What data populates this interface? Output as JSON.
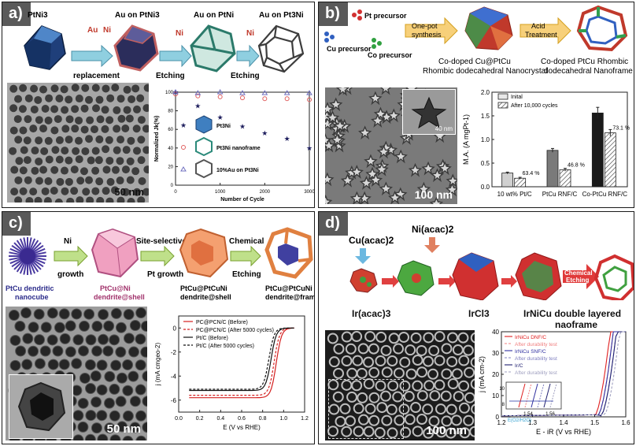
{
  "figure": {
    "panels": [
      {
        "label": "a)",
        "schematic": {
          "start": "PtNi3",
          "step_labels": [
            "Au on PtNi3",
            "Au on PtNi",
            "Au on Pt3Ni"
          ],
          "reagents": [
            "Au",
            "Ni",
            "Ni",
            "Ni"
          ],
          "arrow_labels": [
            "replacement",
            "Etching",
            "Etching"
          ]
        },
        "scale_bar": "50 nm",
        "chart_data": {
          "type": "scatter",
          "xlabel": "Number of Cycle",
          "ylabel": "Normalized Jk(%)",
          "xlim": [
            0,
            3000
          ],
          "ylim": [
            0,
            100
          ],
          "xticks": [
            "0",
            "1000",
            "2000",
            "3000"
          ],
          "yticks": [
            "0",
            "20",
            "40",
            "60",
            "80",
            "100"
          ],
          "legend_position": "left",
          "series": [
            {
              "name": "Pt3Ni",
              "marker": "star",
              "color": "#1f1f5e",
              "x": [
                0,
                500,
                1000,
                1500,
                2000,
                2500,
                3000
              ],
              "y": [
                100,
                85,
                73,
                63,
                56,
                50,
                40
              ]
            },
            {
              "name": "Pt3Ni nanoframe",
              "marker": "circle",
              "color": "#e06060",
              "x": [
                0,
                500,
                1000,
                1500,
                2000,
                2500,
                3000
              ],
              "y": [
                98,
                96,
                95,
                94,
                93,
                93,
                92
              ]
            },
            {
              "name": "10%Au on Pt3Ni",
              "marker": "triangle",
              "color": "#7070c0",
              "x": [
                0,
                500,
                1000,
                1500,
                2000,
                2500,
                3000
              ],
              "y": [
                100,
                99,
                100,
                99,
                99,
                99,
                99
              ]
            }
          ]
        }
      },
      {
        "label": "b)",
        "schematic": {
          "precursors": [
            "Pt precursor",
            "Cu precursor",
            "Co precursor"
          ],
          "arrow1": [
            "One-pot",
            "synthesis"
          ],
          "arrow2": [
            "Acid",
            "Treatment"
          ],
          "product1": [
            "Co-doped Cu@PtCu",
            "Rhombic dodecahedral Nanocrystal"
          ],
          "product2": [
            "Co-doped PtCu Rhombic",
            "dodecahedral Nanoframe"
          ]
        },
        "inset_scale": "40 nm",
        "scale_bar": "100 nm",
        "chart_data": {
          "type": "bar",
          "categories": [
            "10 wt% Pt/C",
            "PtCu RNF/C",
            "Co-PtCu RNF/C"
          ],
          "series": [
            {
              "name": "Inital",
              "values": [
                0.29,
                0.77,
                1.56
              ],
              "errors": [
                0.02,
                0.04,
                0.12
              ]
            },
            {
              "name": "After 10,000 cycles",
              "values": [
                0.18,
                0.36,
                1.14
              ],
              "errors": [
                0.02,
                0.03,
                0.07
              ]
            }
          ],
          "annotations": [
            "63.4 %",
            "46.8 %",
            "73.1 %"
          ],
          "ylabel": "M.A. (A mgPt-1)",
          "ylim": [
            0,
            2.0
          ],
          "yticks": [
            "0.0",
            "0.5",
            "1.0",
            "1.5",
            "2.0"
          ],
          "legend_position": "top-left"
        }
      },
      {
        "label": "c)",
        "schematic": {
          "items": [
            [
              "PtCu dendritic",
              "nanocube"
            ],
            [
              "PtCu@Ni",
              "dendrite@shell"
            ],
            [
              "PtCu@PtCuNi",
              "dendrite@shell"
            ],
            [
              "PtCu@PtCuNi",
              "dendrite@frame"
            ]
          ],
          "arrows": [
            [
              "Ni",
              "growth"
            ],
            [
              "Site-selective",
              "Pt growth"
            ],
            [
              "Chemical",
              "Etching"
            ]
          ]
        },
        "scale_bar": "50 nm",
        "chart_data": {
          "type": "line",
          "xlabel": "E (V vs RHE)",
          "ylabel": "j (mA cmgeo-2)",
          "xlim": [
            0,
            1.2
          ],
          "ylim": [
            -7,
            1
          ],
          "xticks": [
            "0.0",
            "0.2",
            "0.4",
            "0.6",
            "0.8",
            "1.0",
            "1.2"
          ],
          "yticks": [
            "-6",
            "-4",
            "-2",
            "0"
          ],
          "legend_position": "top-left",
          "series": [
            {
              "name": "PC@PCN/C (Before)",
              "color": "#d42020",
              "dash": false,
              "limit": -5.8,
              "half": 0.93
            },
            {
              "name": "PC@PCN/C (After 5000 cycles)",
              "color": "#d42020",
              "dash": true,
              "limit": -5.6,
              "half": 0.91
            },
            {
              "name": "Pt/C (Before)",
              "color": "#111111",
              "dash": false,
              "limit": -5.2,
              "half": 0.88
            },
            {
              "name": "Pt/C (After 5000 cycles)",
              "color": "#111111",
              "dash": true,
              "limit": -5.1,
              "half": 0.86
            }
          ]
        }
      },
      {
        "label": "d)",
        "schematic": {
          "precursors_top": [
            "Cu(acac)2",
            "Ni(acac)2"
          ],
          "precursors_bottom": [
            "Ir(acac)3",
            "IrCl3"
          ],
          "arrow": [
            "Chemical",
            "Etching"
          ],
          "product": [
            "IrNiCu double layered",
            "naoframe"
          ]
        },
        "scale_bar": "100 nm",
        "chart_data": {
          "type": "line",
          "xlabel": "E - iR (V vs RHE)",
          "ylabel": "j (mA cm-2)",
          "xlim": [
            1.2,
            1.6
          ],
          "ylim": [
            0,
            40
          ],
          "xticks": [
            "1.2",
            "1.3",
            "1.4",
            "1.5",
            "1.6"
          ],
          "yticks": [
            "0",
            "10",
            "20",
            "30",
            "40"
          ],
          "legend_position": "top-left",
          "series": [
            {
              "name": "IrNiCu DNF/C",
              "color": "#e02020",
              "dash": false,
              "onset": 1.5
            },
            {
              "name": "After durability test",
              "color": "#f08080",
              "dash": true,
              "onset": 1.51
            },
            {
              "name": "IrNiCu SNF/C",
              "color": "#3030a0",
              "dash": false,
              "onset": 1.51
            },
            {
              "name": "After durability test",
              "color": "#8080c0",
              "dash": true,
              "onset": 1.52
            },
            {
              "name": "Ir/C",
              "color": "#202070",
              "dash": false,
              "onset": 1.52
            },
            {
              "name": "After durability test",
              "color": "#a0a0c0",
              "dash": true,
              "onset": 1.53
            }
          ],
          "inset": {
            "xticks": [
              "1.54",
              "1.56"
            ],
            "yticks": [
              "8",
              "10"
            ],
            "label": "E(O2/H2O)"
          }
        }
      }
    ]
  }
}
